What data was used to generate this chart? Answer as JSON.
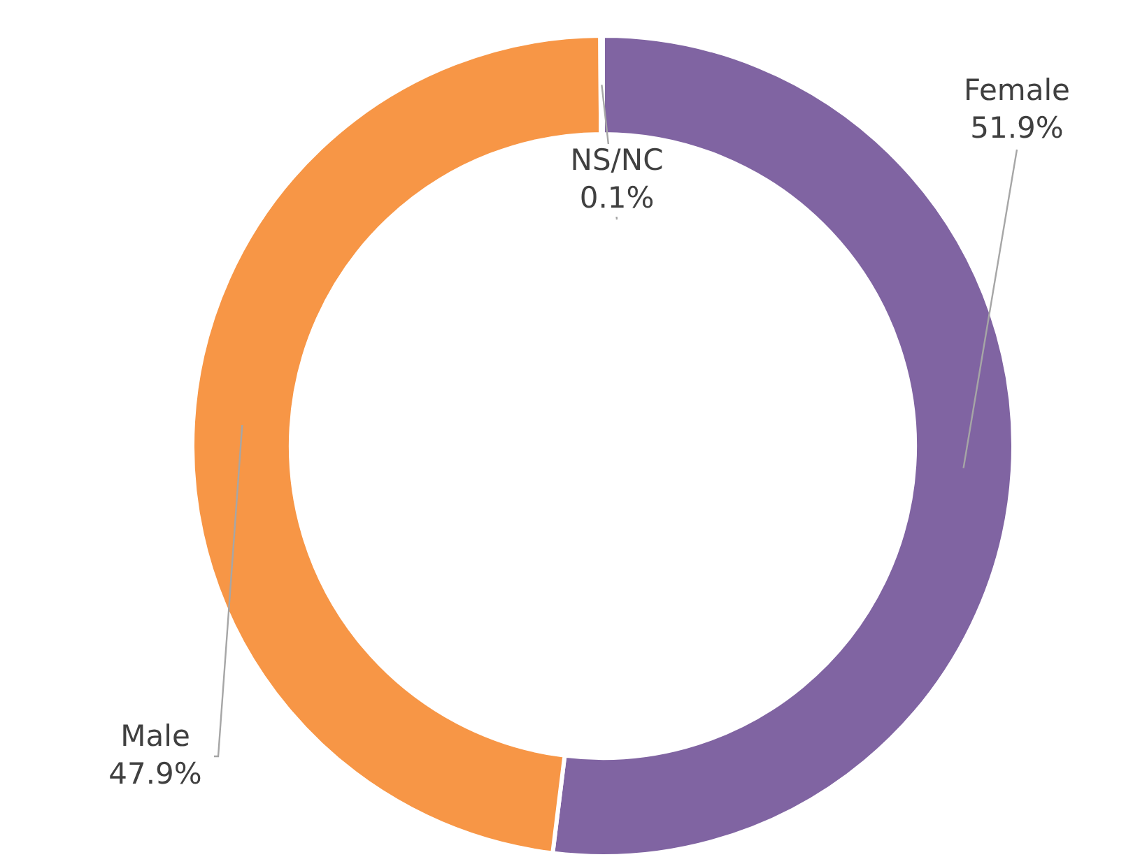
{
  "chart_data": {
    "type": "donut",
    "categories": [
      "Female",
      "Male",
      "NS/NC"
    ],
    "values": [
      51.9,
      47.9,
      0.1
    ],
    "colors": [
      "#8064a2",
      "#f79646",
      "#4f81bd"
    ],
    "value_labels": [
      "51.9%",
      "47.9%",
      "0.1%"
    ],
    "legend": false
  }
}
